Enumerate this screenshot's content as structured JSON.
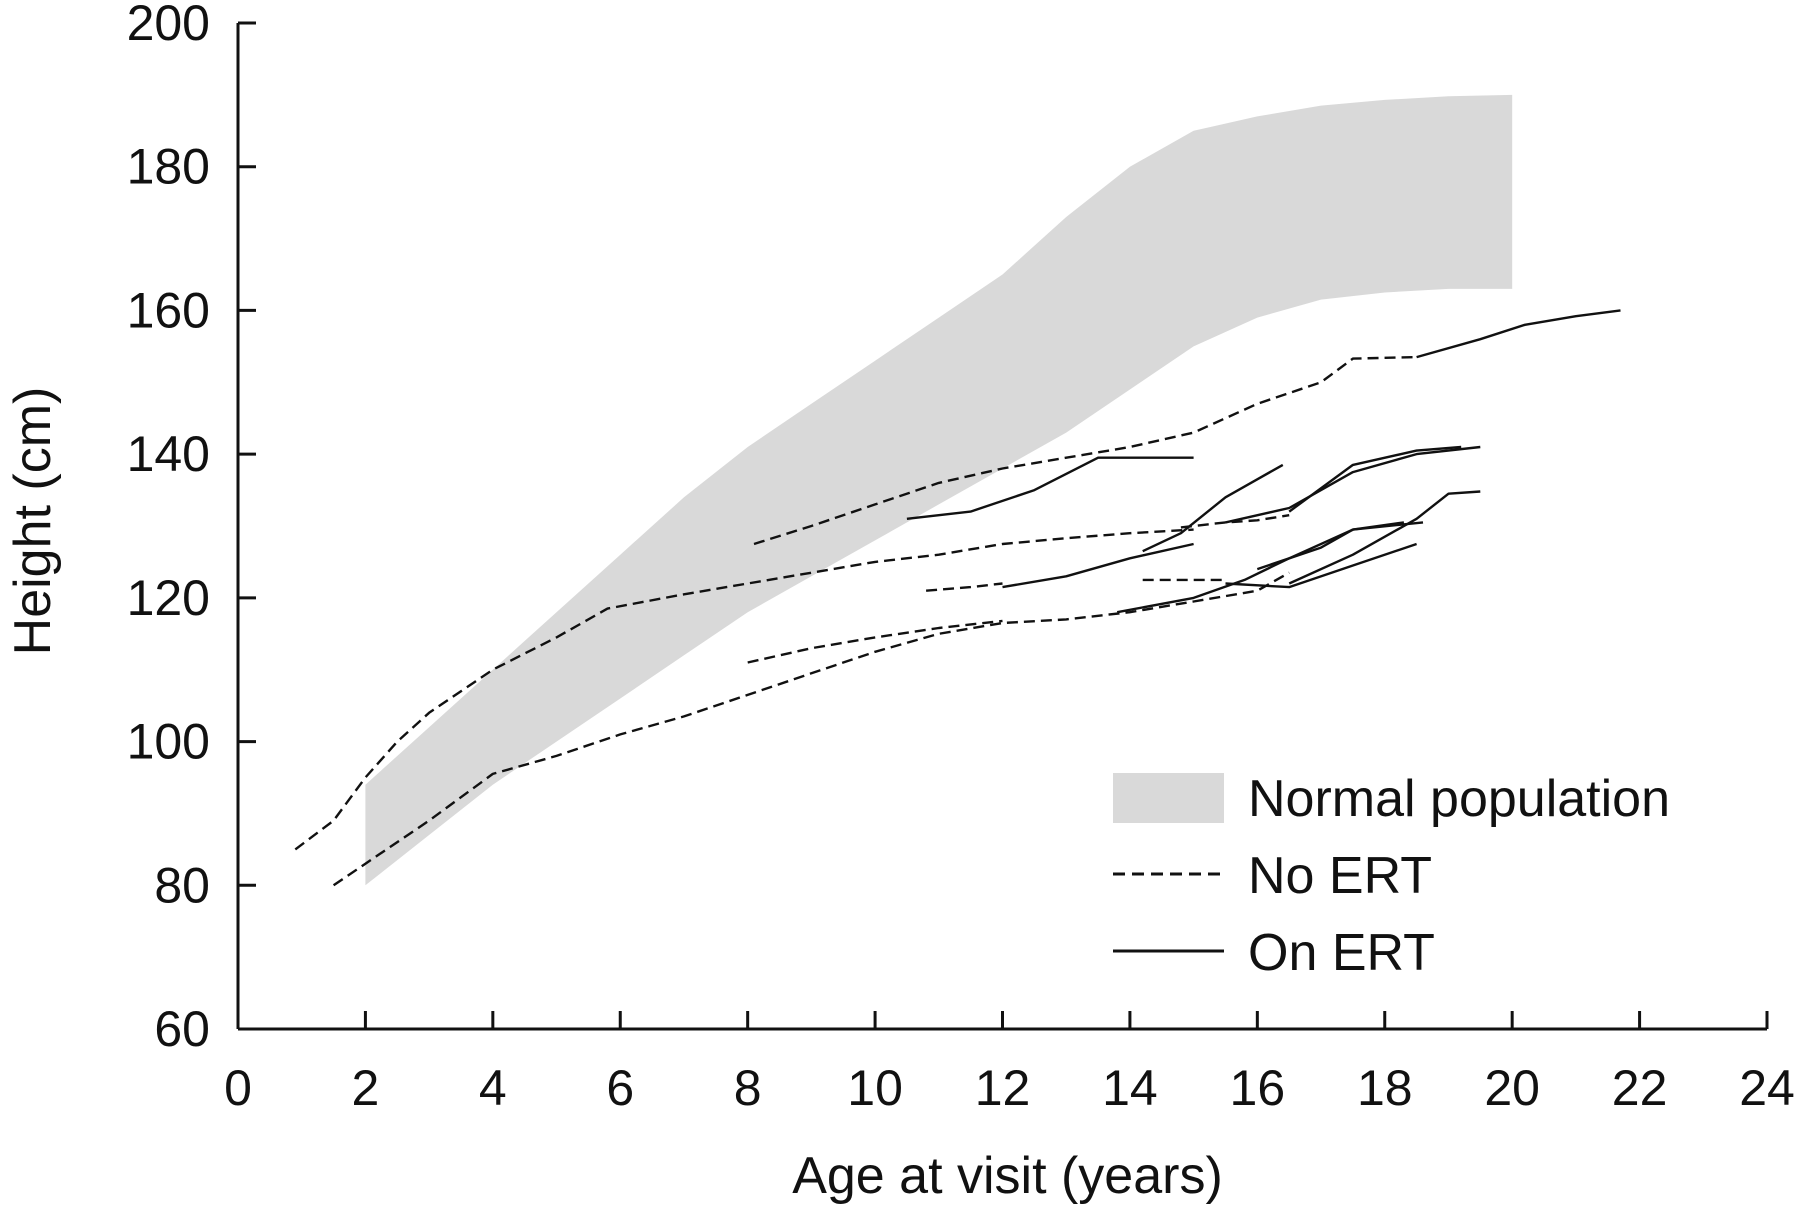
{
  "chart_data": {
    "type": "line",
    "xlabel": "Age at visit (years)",
    "ylabel": "Height (cm)",
    "xlim": [
      0,
      24
    ],
    "ylim": [
      60,
      200
    ],
    "xticks": [
      "0",
      "2",
      "4",
      "6",
      "8",
      "10",
      "12",
      "14",
      "16",
      "18",
      "20",
      "22",
      "24"
    ],
    "yticks": [
      "60",
      "80",
      "100",
      "120",
      "140",
      "160",
      "180",
      "200"
    ],
    "legend_position": "bottom-right",
    "legend": [
      {
        "label": "Normal population",
        "style": "band"
      },
      {
        "label": "No ERT",
        "style": "dashed"
      },
      {
        "label": "On ERT",
        "style": "solid"
      }
    ],
    "colors": {
      "band": "#d9d9d9",
      "line": "#111111",
      "axis": "#111111"
    },
    "normal_band": {
      "x": [
        2,
        3,
        4,
        5,
        6,
        7,
        8,
        9,
        10,
        11,
        12,
        13,
        14,
        15,
        16,
        17,
        18,
        19,
        20
      ],
      "upper": [
        94,
        102,
        110,
        118,
        126,
        134,
        141,
        147,
        153,
        159,
        165,
        173,
        180,
        185,
        187,
        188.5,
        189.3,
        189.8,
        190
      ],
      "lower": [
        80,
        87,
        94,
        100,
        106,
        112,
        118,
        123,
        128,
        133,
        138,
        143,
        149,
        155,
        159,
        161.5,
        162.5,
        163,
        163
      ]
    },
    "series": [
      {
        "style": "dashed",
        "points": [
          [
            0.9,
            85
          ],
          [
            1.5,
            89
          ],
          [
            2,
            95
          ],
          [
            2.5,
            100
          ],
          [
            3,
            104
          ],
          [
            4,
            110
          ],
          [
            5,
            114.5
          ],
          [
            5.8,
            118.5
          ],
          [
            7,
            120.5
          ],
          [
            8,
            122
          ],
          [
            9,
            123.5
          ],
          [
            10,
            125
          ],
          [
            11,
            126
          ],
          [
            12,
            127.5
          ],
          [
            13,
            128.3
          ],
          [
            14,
            129
          ],
          [
            15,
            129.5
          ]
        ]
      },
      {
        "style": "dashed",
        "points": [
          [
            1.5,
            80
          ],
          [
            2,
            83
          ],
          [
            3,
            89
          ],
          [
            4,
            95.5
          ],
          [
            5,
            98
          ],
          [
            6,
            101
          ],
          [
            7,
            103.5
          ],
          [
            8,
            106.5
          ],
          [
            9,
            109.5
          ],
          [
            10,
            112.5
          ],
          [
            11,
            115
          ],
          [
            12,
            116.5
          ],
          [
            13,
            117
          ],
          [
            14,
            118
          ],
          [
            15,
            119.5
          ],
          [
            16,
            121
          ],
          [
            16.5,
            123.5
          ]
        ]
      },
      {
        "style": "dashed",
        "points": [
          [
            8.1,
            127.5
          ],
          [
            9,
            130
          ],
          [
            10,
            133
          ],
          [
            11,
            136
          ],
          [
            12,
            138
          ],
          [
            13,
            139.5
          ],
          [
            14,
            141
          ],
          [
            15,
            143
          ],
          [
            16,
            147
          ],
          [
            17,
            150
          ],
          [
            17.5,
            153.3
          ],
          [
            18.5,
            153.5
          ]
        ]
      },
      {
        "style": "dashed",
        "points": [
          [
            8,
            111
          ],
          [
            9,
            113
          ],
          [
            10,
            114.5
          ],
          [
            11,
            115.8
          ],
          [
            12,
            116.8
          ]
        ]
      },
      {
        "style": "dashed",
        "points": [
          [
            10.8,
            121
          ],
          [
            11.5,
            121.5
          ],
          [
            12,
            122
          ]
        ]
      },
      {
        "style": "dashed",
        "points": [
          [
            14.2,
            122.5
          ],
          [
            15,
            122.5
          ],
          [
            15.5,
            122.5
          ]
        ]
      },
      {
        "style": "dashed",
        "points": [
          [
            14.8,
            129.8
          ],
          [
            15.5,
            130.5
          ],
          [
            16,
            130.8
          ],
          [
            16.5,
            131.5
          ]
        ]
      },
      {
        "style": "solid",
        "points": [
          [
            18.5,
            153.5
          ],
          [
            19.5,
            156
          ],
          [
            20.2,
            158
          ],
          [
            21,
            159.2
          ],
          [
            21.7,
            160
          ]
        ]
      },
      {
        "style": "solid",
        "points": [
          [
            10.5,
            131
          ],
          [
            11.5,
            132
          ],
          [
            12.5,
            135
          ],
          [
            13.5,
            139.5
          ],
          [
            15,
            139.5
          ]
        ]
      },
      {
        "style": "solid",
        "points": [
          [
            12,
            121.5
          ],
          [
            13,
            123
          ],
          [
            14,
            125.5
          ],
          [
            15,
            127.5
          ]
        ]
      },
      {
        "style": "solid",
        "points": [
          [
            14.2,
            126.5
          ],
          [
            14.8,
            129
          ],
          [
            15.5,
            134
          ],
          [
            16,
            136.5
          ],
          [
            16.4,
            138.5
          ]
        ]
      },
      {
        "style": "solid",
        "points": [
          [
            15.5,
            130.5
          ],
          [
            16.5,
            132.5
          ],
          [
            17.5,
            137.5
          ],
          [
            18.5,
            140
          ],
          [
            19.5,
            141
          ]
        ]
      },
      {
        "style": "solid",
        "points": [
          [
            16.5,
            132
          ],
          [
            17.5,
            138.5
          ],
          [
            18.5,
            140.5
          ],
          [
            19.2,
            141
          ]
        ]
      },
      {
        "style": "solid",
        "points": [
          [
            16,
            124
          ],
          [
            17,
            127
          ],
          [
            17.5,
            129.5
          ],
          [
            18.3,
            130.5
          ]
        ]
      },
      {
        "style": "solid",
        "points": [
          [
            16.5,
            122
          ],
          [
            17.5,
            126
          ],
          [
            18.5,
            131
          ],
          [
            19,
            134.5
          ],
          [
            19.5,
            134.8
          ]
        ]
      },
      {
        "style": "solid",
        "points": [
          [
            15.5,
            122
          ],
          [
            16.5,
            121.5
          ],
          [
            17.5,
            124.5
          ],
          [
            18.5,
            127.5
          ]
        ]
      },
      {
        "style": "solid",
        "points": [
          [
            13.8,
            118
          ],
          [
            15,
            120
          ],
          [
            15.8,
            122.5
          ],
          [
            16.5,
            125.5
          ],
          [
            17.5,
            129.5
          ],
          [
            18.6,
            130.5
          ]
        ]
      }
    ]
  }
}
